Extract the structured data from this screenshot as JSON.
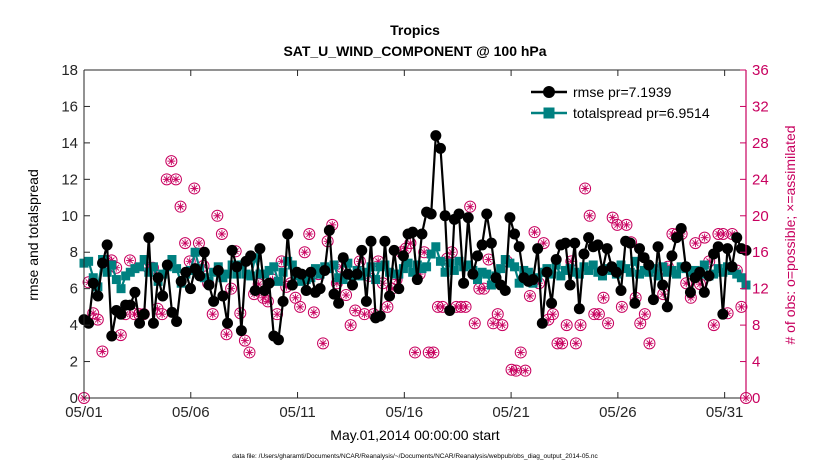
{
  "chart_data": {
    "type": "line",
    "title": "Tropics",
    "subtitle": "SAT_U_WIND_COMPONENT @ 100 hPa",
    "xlabel": "May.01,2014 00:00:00 start",
    "ylabel_left": "rmse and totalspread",
    "ylabel_right": "# of obs: o=possible; ×=assimilated",
    "footer": "data file: /Users/gharamti/Documents/NCAR/Reanalysis/~/Documents/NCAR/Reanalysis/webpub/obs_diag_output_2014-05.nc",
    "xlim": [
      0,
      31
    ],
    "xticks": [
      0,
      5,
      10,
      15,
      20,
      25,
      30
    ],
    "xtick_labels": [
      "05/01",
      "05/06",
      "05/11",
      "05/16",
      "05/21",
      "05/26",
      "05/31"
    ],
    "ylim_left": [
      0,
      18
    ],
    "yticks_left": [
      0,
      2,
      4,
      6,
      8,
      10,
      12,
      14,
      16,
      18
    ],
    "ylim_right": [
      0,
      36
    ],
    "yticks_right": [
      0,
      4,
      8,
      12,
      16,
      20,
      24,
      28,
      32,
      36
    ],
    "grid": false,
    "legend_position": "top-right",
    "colors": {
      "rmse": "#000000",
      "spread": "#008080",
      "obs": "#c8005f"
    },
    "series": [
      {
        "name": "rmse pr=7.1939",
        "axis": "left",
        "values": [
          4.3,
          4.1,
          6.3,
          5.6,
          7.4,
          8.4,
          3.4,
          4.8,
          4.6,
          5.1,
          5.1,
          5.8,
          4.1,
          4.6,
          8.8,
          4.1,
          6.6,
          5.6,
          7.3,
          4.7,
          4.2,
          6.4,
          6.9,
          6.0,
          7.1,
          6.7,
          8.0,
          6.2,
          5.3,
          7.0,
          5.6,
          4.1,
          8.1,
          7.2,
          3.7,
          7.5,
          7.8,
          5.9,
          8.2,
          5.9,
          6.3,
          3.4,
          3.2,
          5.3,
          9.0,
          6.2,
          6.9,
          6.8,
          5.9,
          6.9,
          5.8,
          6.0,
          7.0,
          9.2,
          5.7,
          5.2,
          7.7,
          6.8,
          6.2,
          6.8,
          8.1,
          5.3,
          8.6,
          4.4,
          4.5,
          8.6,
          5.6,
          8.1,
          6.0,
          7.8,
          9.0,
          9.1,
          6.5,
          9.0,
          10.2,
          10.1,
          14.4,
          13.7,
          10.0,
          4.8,
          9.8,
          10.1,
          6.3,
          9.9,
          6.8,
          7.8,
          8.4,
          10.1,
          8.5,
          6.6,
          6.2,
          5.9,
          9.9,
          9.0,
          8.3,
          6.6,
          6.4,
          6.5,
          8.2,
          4.1,
          6.9,
          5.2,
          7.6,
          8.4,
          8.5,
          6.2,
          8.5,
          4.9,
          7.9,
          8.8,
          8.3,
          8.4,
          7.0,
          8.2,
          7.2,
          6.9,
          5.9,
          8.6,
          8.5,
          5.2,
          8.2,
          7.7,
          7.3,
          5.4,
          8.3,
          6.2,
          5.0,
          7.8,
          8.8,
          9.3,
          7.2,
          5.8,
          6.6,
          6.9,
          5.8,
          6.7,
          7.9,
          8.3,
          4.6,
          8.2,
          7.2,
          8.8,
          8.2,
          8.1
        ]
      },
      {
        "name": "totalspread pr=6.9514",
        "axis": "left",
        "values": [
          7.4,
          7.5,
          6.6,
          6.1,
          7.6,
          6.9,
          7.3,
          6.5,
          6.0,
          6.7,
          6.9,
          7.1,
          7.2,
          7.6,
          6.9,
          7.2,
          6.4,
          6.8,
          7.2,
          7.6,
          7.1,
          6.3,
          6.8,
          7.0,
          8.0,
          7.1,
          6.6,
          6.4,
          6.9,
          7.2,
          6.6,
          6.8,
          7.3,
          6.8,
          7.3,
          6.8,
          6.7,
          7.7,
          6.8,
          6.8,
          7.0,
          7.2,
          6.4,
          6.9,
          7.5,
          7.3,
          6.7,
          6.4,
          6.5,
          6.6,
          7.1,
          6.8,
          7.2,
          7.1,
          7.3,
          6.6,
          6.5,
          7.4,
          6.7,
          7.0,
          6.7,
          6.9,
          7.2,
          6.5,
          7.2,
          7.3,
          6.9,
          6.8,
          6.8,
          7.1,
          7.4,
          6.9,
          7.3,
          7.1,
          7.2,
          7.9,
          8.3,
          7.5,
          6.9,
          7.4,
          7.0,
          7.5,
          7.2,
          7.3,
          7.0,
          6.5,
          6.9,
          6.8,
          6.2,
          6.7,
          7.1,
          7.6,
          7.4,
          7.2,
          6.3,
          7.0,
          6.9,
          6.3,
          6.6,
          6.9,
          7.1,
          6.8,
          7.3,
          6.7,
          7.0,
          7.1,
          6.9,
          6.8,
          7.2,
          7.0,
          7.3,
          6.9,
          6.7,
          7.1,
          7.0,
          6.8,
          7.3,
          7.1,
          6.9,
          7.5,
          6.8,
          7.0,
          6.9,
          7.1,
          6.7,
          7.2,
          6.9,
          7.0,
          6.8,
          7.2,
          7.1,
          6.9,
          7.0,
          6.8,
          7.3,
          6.7,
          6.8,
          7.1,
          6.9,
          7.2,
          7.0,
          6.8,
          6.6,
          6.2
        ]
      },
      {
        "name": "obs possible",
        "axis": "right",
        "values": [
          0,
          12.7,
          9.3,
          8.6,
          5.1,
          15.0,
          15.1,
          14.3,
          6.9,
          9.2,
          15.1,
          9.2,
          9.2,
          9.2,
          14.3,
          14.3,
          9.8,
          9.2,
          24.0,
          26.0,
          24.0,
          21.0,
          17.0,
          15.0,
          23.0,
          17.0,
          14.5,
          12.6,
          9.2,
          20.0,
          18.0,
          7.0,
          12.0,
          16.1,
          9.3,
          6.3,
          5.0,
          11.4,
          12.5,
          11.0,
          10.6,
          13.0,
          9.2,
          15.0,
          12.2,
          12.6,
          11.0,
          10.0,
          16.0,
          18.0,
          9.4,
          13.6,
          6.0,
          17.2,
          19.0,
          12.6,
          14.4,
          11.3,
          8.0,
          9.6,
          15.0,
          9.2,
          13.4,
          9.2,
          15.0,
          12.6,
          10.0,
          12.0,
          13.0,
          16.0,
          16.4,
          17.0,
          5.0,
          13.6,
          16.0,
          5.0,
          5.0,
          10.0,
          10.0,
          15.3,
          16.0,
          10.0,
          10.0,
          10.0,
          21.0,
          8.2,
          12.0,
          12.0,
          15.2,
          8.2,
          9.2,
          8.0,
          15.0,
          3.1,
          3.0,
          5.0,
          3.0,
          11.2,
          18.2,
          12.6,
          17.0,
          8.6,
          9.2,
          6.0,
          6.0,
          8.0,
          15.0,
          6.0,
          8.0,
          23.0,
          20.0,
          9.2,
          9.2,
          11.0,
          8.2,
          19.8,
          19.0,
          10.0,
          19.0,
          17.1,
          11.0,
          8.2,
          9.2,
          6.0,
          14.0,
          14.0,
          11.4,
          14.4,
          18.0,
          18.0,
          18.0,
          12.6,
          11.0,
          17.0,
          12.5,
          17.6,
          15.0,
          8.0,
          18.0,
          18.0,
          9.3,
          18.0,
          14.0,
          10.0,
          0
        ],
        "note_marker": "circle"
      }
    ]
  }
}
